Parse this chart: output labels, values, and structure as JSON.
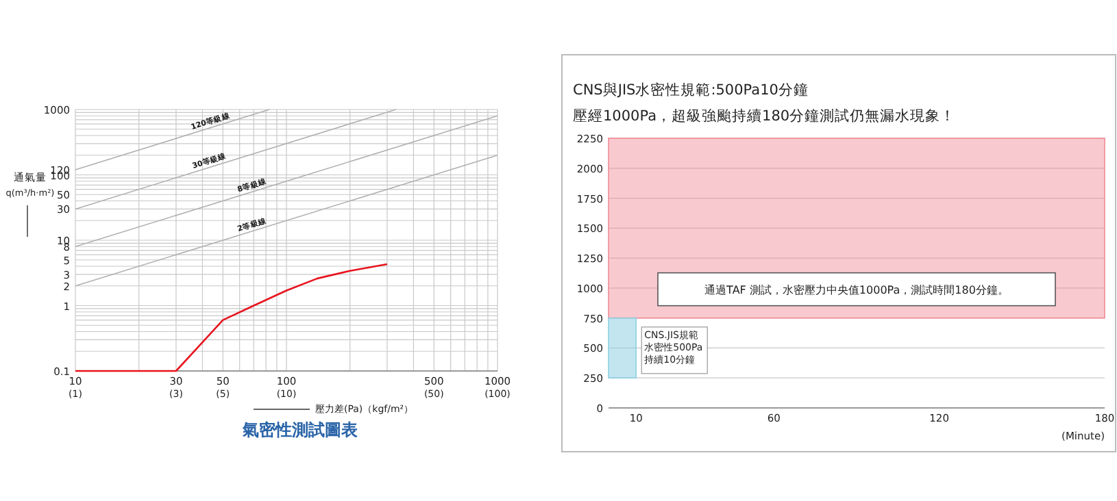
{
  "chart_data": [
    {
      "type": "line",
      "title": "氣密性測試圖表",
      "xlabel": "壓力差(Pa)（kgf/m²）",
      "ylabel": "通氣量 q(m³/h·m²)",
      "log": "xy",
      "grid": true,
      "legend": false,
      "marker": "none",
      "line_style": "solid",
      "xlim": [
        10,
        1000
      ],
      "ylim": [
        0.1,
        1000
      ],
      "xticks": [
        10,
        30,
        50,
        100,
        500,
        1000
      ],
      "annotations": [
        "(1)",
        "(3)",
        "(5)",
        "(10)",
        "(50)",
        "(100)"
      ],
      "yticks": [
        0.1,
        1,
        2,
        3,
        5,
        8,
        10,
        30,
        50,
        100,
        120,
        1000
      ],
      "series": [
        {
          "name": "120等級線",
          "color": "#b0b0b0",
          "x": [
            10,
            83
          ],
          "values": [
            120,
            1000
          ]
        },
        {
          "name": "30等級線",
          "color": "#b0b0b0",
          "x": [
            10,
            330
          ],
          "values": [
            30,
            1000
          ]
        },
        {
          "name": "8等級線",
          "color": "#b0b0b0",
          "x": [
            10,
            1000
          ],
          "values": [
            8,
            800
          ]
        },
        {
          "name": "2等級線",
          "color": "#b0b0b0",
          "x": [
            10,
            1000
          ],
          "values": [
            2,
            200
          ]
        },
        {
          "color": "#e8141e",
          "x": [
            10,
            30,
            50,
            70,
            100,
            140,
            200,
            300
          ],
          "values": [
            0.1,
            0.1,
            0.6,
            1.0,
            1.7,
            2.6,
            3.4,
            4.3
          ]
        }
      ]
    },
    {
      "type": "bar",
      "title": "CNS與JIS水密性規範:500Pa10分鐘",
      "subtitle": "壓經1000Pa，超級強颱持續180分鐘測試仍無漏水現象！",
      "xlabel": "(Minute)",
      "grid": "y",
      "legend": false,
      "xlim": [
        0,
        180
      ],
      "ylim": [
        0,
        2250
      ],
      "xticks": [
        10,
        60,
        120,
        180
      ],
      "yticks": [
        0,
        250,
        500,
        750,
        1000,
        1250,
        1500,
        1750,
        2000,
        2250
      ],
      "bands": [
        {
          "axis": "y",
          "from": 750,
          "to": 2250,
          "color": "#f08a94"
        }
      ],
      "x": [
        5
      ],
      "base": [
        250
      ],
      "values": [
        500
      ],
      "color": "#8fcfe3",
      "annotations": [
        "通過TAF 測試，水密壓力中央值1000Pa，測試時間180分鐘。",
        "CNS.JIS規範水密性500Pa持續10分鐘"
      ]
    }
  ]
}
